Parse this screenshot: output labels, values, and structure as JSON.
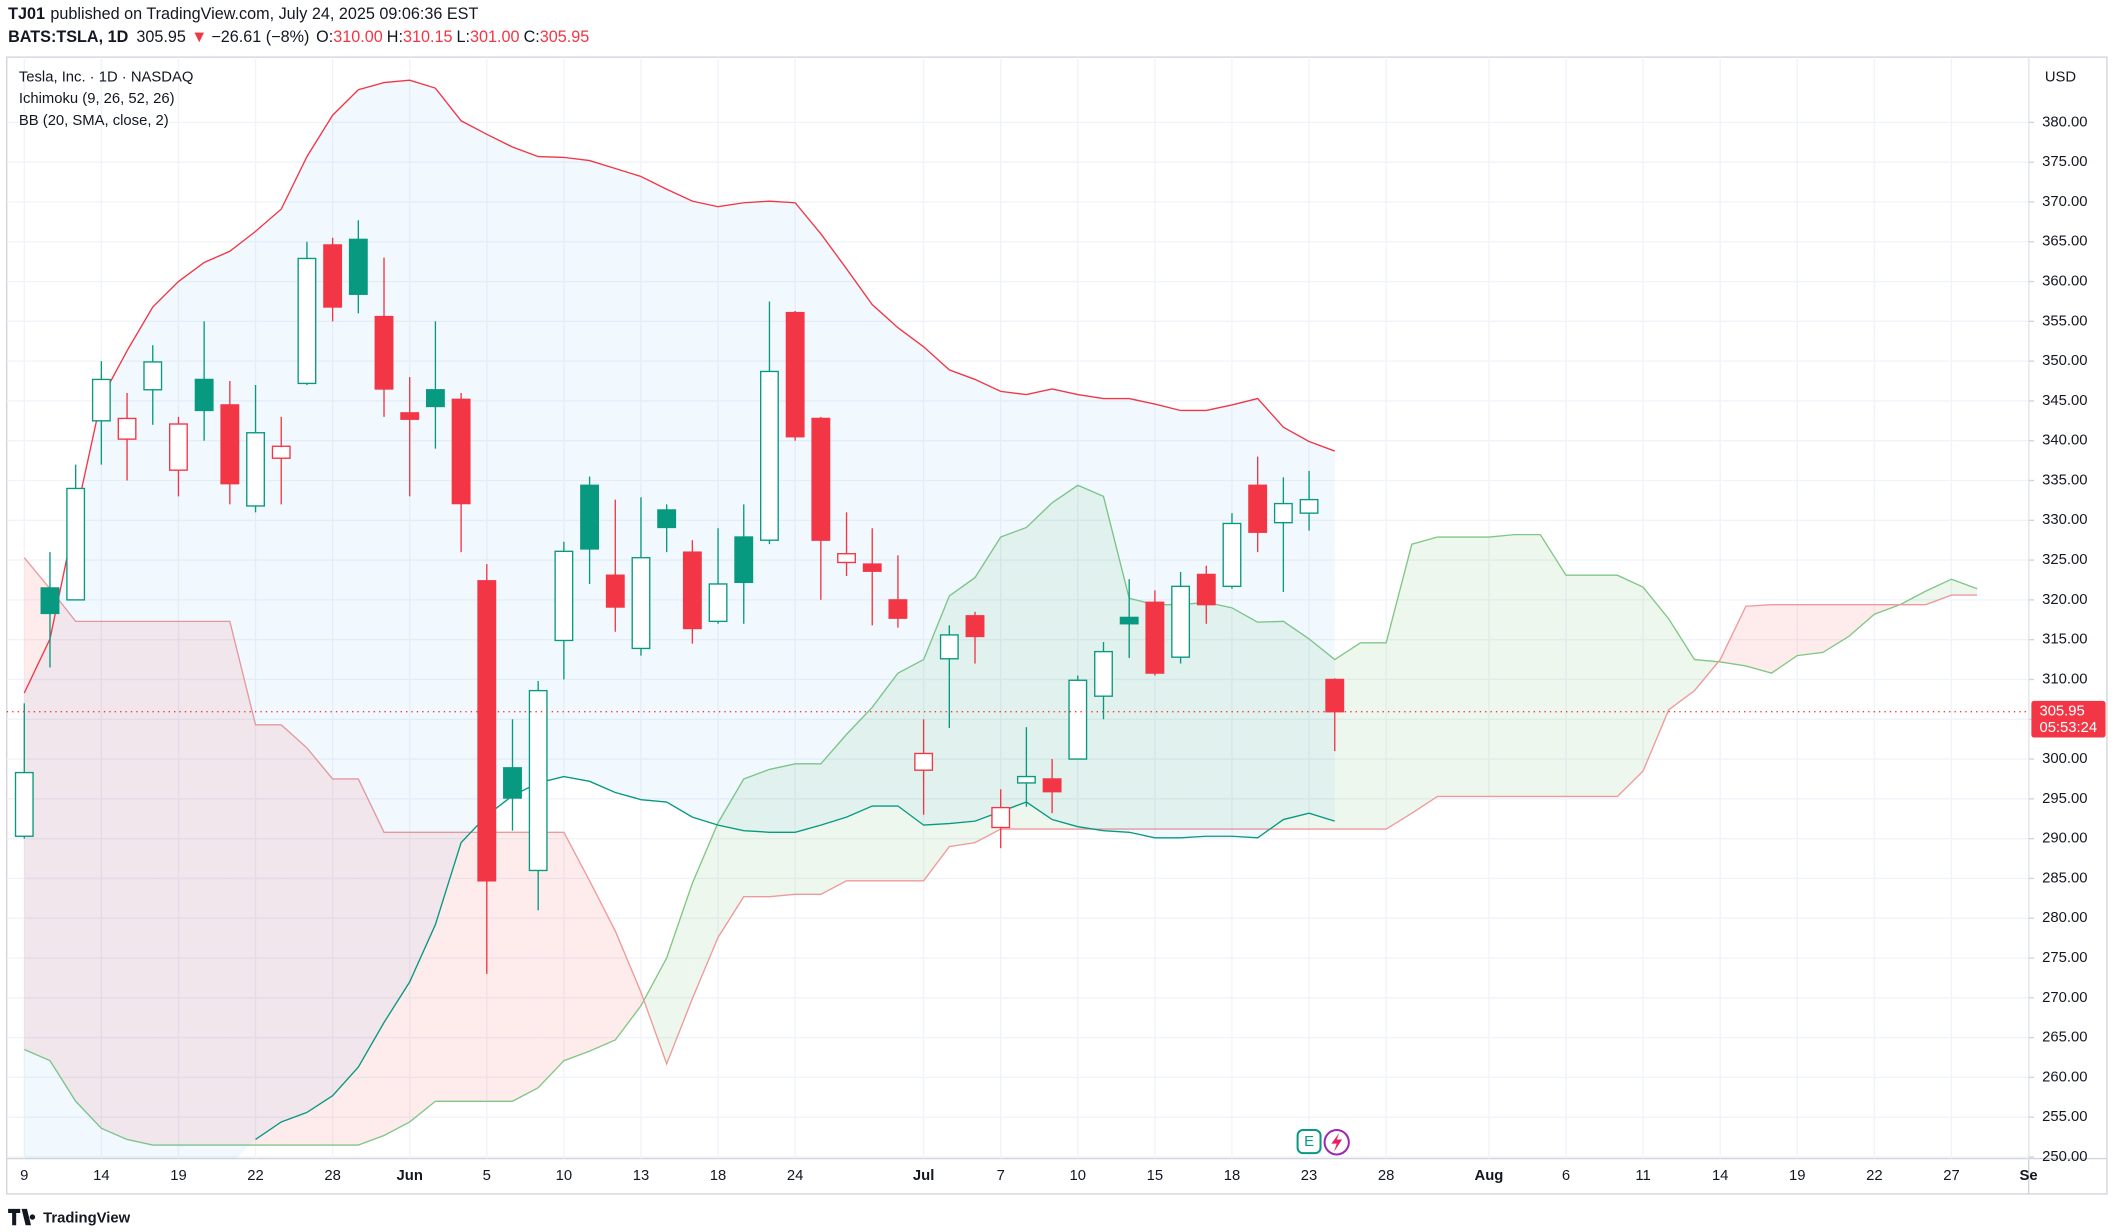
{
  "header": {
    "author": "TJ01",
    "published": "published on TradingView.com, July 24, 2025 09:06:36 EST",
    "symbol": "BATS:TSLA, 1D",
    "last": "305.95",
    "arrow": "▼",
    "change": "−26.61 (−8%)",
    "o_key": "O:",
    "o": "310.00",
    "h_key": "H:",
    "h": "310.15",
    "l_key": "L:",
    "l": "301.00",
    "c_key": "C:",
    "c": "305.95"
  },
  "footer": {
    "brand": "TradingView"
  },
  "chart_data": {
    "type": "candlestick",
    "title": "Tesla, Inc. · 1D · NASDAQ",
    "currency": "USD",
    "up_color": "#089981",
    "down_color": "#f23645",
    "grid": true,
    "price_label": "305.95",
    "countdown": "05:53:24",
    "earnings_icon": "E",
    "categories": [
      "9",
      null,
      null,
      "14",
      null,
      null,
      "19",
      null,
      null,
      "22",
      null,
      null,
      "28",
      null,
      null,
      "Jun",
      null,
      null,
      "5",
      null,
      null,
      "10",
      null,
      null,
      "13",
      null,
      null,
      "18",
      null,
      null,
      "24",
      null,
      null,
      null,
      null,
      "Jul",
      null,
      null,
      "7",
      null,
      null,
      "10",
      null,
      null,
      "15",
      null,
      null,
      "18",
      null,
      null,
      "23",
      null,
      null,
      "28",
      null,
      null,
      null,
      "Aug",
      null,
      null,
      "6",
      null,
      null,
      "11",
      null,
      null,
      "14",
      null,
      null,
      "19",
      null,
      null,
      "22",
      null,
      null,
      "27",
      null,
      null,
      "Se"
    ],
    "open": [
      290.3,
      321.5,
      320,
      342.5,
      340.2,
      346.4,
      336.3,
      347.7,
      344.5,
      331.8,
      337.8,
      347.2,
      364.6,
      365.3,
      355.6,
      343.5,
      346.4,
      345.2,
      322.4,
      298.9,
      286,
      314.9,
      334.4,
      323.1,
      313.9,
      331.3,
      326,
      317.3,
      327.9,
      327.5,
      356.1,
      342.8,
      324.7,
      324.5,
      320,
      298.6,
      312.6,
      318,
      291.4,
      297,
      297.5,
      300,
      307.9,
      317.8,
      319.7,
      312.8,
      323.2,
      321.7,
      334.4,
      329.7,
      330.9,
      310,
      null,
      null,
      null,
      null,
      null,
      null,
      null,
      null,
      null,
      null,
      null,
      null,
      null,
      null,
      null,
      null,
      null,
      null,
      null,
      null,
      null,
      null,
      null,
      null,
      null,
      null,
      null
    ],
    "high": [
      307,
      326,
      337,
      350,
      346,
      352,
      343,
      355,
      347.5,
      347,
      343,
      365,
      365.5,
      367.7,
      363,
      348,
      355,
      346,
      324.5,
      305,
      309.8,
      327.3,
      335.5,
      332.6,
      332.9,
      332,
      327.5,
      329,
      332,
      357.5,
      356.3,
      343,
      331,
      329,
      325.6,
      305,
      316.8,
      318.5,
      296.2,
      304,
      300,
      310.5,
      314.7,
      322.6,
      321.2,
      323.5,
      324.3,
      330.9,
      338,
      335.4,
      336.2,
      310.15,
      null,
      null,
      null,
      null,
      null,
      null,
      null,
      null,
      null,
      null,
      null,
      null,
      null,
      null,
      null,
      null,
      null,
      null,
      null,
      null,
      null,
      null,
      null,
      null,
      null,
      null,
      null
    ],
    "low": [
      290,
      311.5,
      320,
      337,
      335,
      342,
      333,
      340,
      332,
      331,
      332,
      347,
      355,
      356,
      343,
      333,
      339,
      326,
      273,
      291,
      281,
      310,
      322,
      316,
      313,
      326,
      314.5,
      317,
      317,
      327,
      340,
      320,
      323,
      316.8,
      316.5,
      293,
      303.9,
      312,
      288.8,
      294,
      293.2,
      300,
      305,
      312.7,
      310.5,
      312,
      317,
      321.4,
      326,
      321,
      328.7,
      301,
      null,
      null,
      null,
      null,
      null,
      null,
      null,
      null,
      null,
      null,
      null,
      null,
      null,
      null,
      null,
      null,
      null,
      null,
      null,
      null,
      null,
      null,
      null,
      null,
      null,
      null,
      null
    ],
    "close": [
      298.3,
      318.3,
      334,
      347.7,
      342.8,
      349.9,
      342.1,
      343.8,
      334.6,
      341,
      339.3,
      362.9,
      356.8,
      358.4,
      346.5,
      342.7,
      344.3,
      332.1,
      284.7,
      295.1,
      308.6,
      326.1,
      326.4,
      319.1,
      325.3,
      329.1,
      316.4,
      322,
      322.2,
      348.7,
      340.5,
      327.5,
      325.8,
      323.6,
      317.7,
      300.7,
      315.6,
      315.4,
      293.9,
      297.8,
      295.9,
      309.9,
      313.5,
      317,
      310.8,
      321.7,
      319.4,
      329.6,
      328.5,
      332.1,
      332.6,
      305.95,
      null,
      null,
      null,
      null,
      null,
      null,
      null,
      null,
      null,
      null,
      null,
      null,
      null,
      null,
      null,
      null,
      null,
      null,
      null,
      null,
      null,
      null,
      null,
      null,
      null,
      null,
      null
    ],
    "overlays": [
      {
        "name": "Ichimoku (9, 26, 52, 26)",
        "kind": "cloud",
        "color_a": "#81c784",
        "color_b": "#ef9a9a",
        "fill_a": "rgba(76,175,80,0.10)",
        "fill_b": "rgba(242,54,69,0.10)",
        "span_a": [
          263.5,
          262.1,
          257.0,
          253.6,
          252.2,
          251.5,
          251.5,
          251.5,
          251.5,
          251.5,
          251.5,
          251.5,
          251.5,
          251.5,
          252.7,
          254.4,
          257.0,
          257.0,
          257.0,
          257.0,
          258.7,
          262.1,
          263.3,
          264.7,
          269.0,
          275.0,
          284.4,
          292.0,
          297.5,
          298.7,
          299.4,
          299.4,
          303.1,
          306.5,
          310.8,
          312.5,
          320.5,
          322.8,
          327.9,
          329.1,
          332.2,
          334.4,
          333.0,
          320.2,
          319.4,
          319.4,
          319.7,
          319.0,
          317.2,
          317.3,
          315.1,
          312.5,
          314.6,
          314.6,
          327.0,
          327.9,
          327.9,
          327.9,
          328.2,
          328.2,
          323.1,
          323.1,
          323.1,
          321.6,
          317.6,
          312.5,
          312.2,
          311.7,
          310.8,
          313.0,
          313.4,
          315.4,
          318.2,
          319.4,
          321.1,
          322.6,
          321.4,
          null,
          null
        ],
        "span_b": [
          325.3,
          321.4,
          317.3,
          317.3,
          317.3,
          317.3,
          317.3,
          317.3,
          317.3,
          304.3,
          304.3,
          301.4,
          297.5,
          297.5,
          290.8,
          290.8,
          290.8,
          290.8,
          290.8,
          290.8,
          290.8,
          290.8,
          284.7,
          278.4,
          270.7,
          261.7,
          269.9,
          277.6,
          282.7,
          282.7,
          283.0,
          283.0,
          284.7,
          284.7,
          284.7,
          284.7,
          289.0,
          289.5,
          291.2,
          291.2,
          291.2,
          291.2,
          291.2,
          291.2,
          291.2,
          291.2,
          291.2,
          291.2,
          291.2,
          291.2,
          291.2,
          291.2,
          291.2,
          291.2,
          293.2,
          295.3,
          295.3,
          295.3,
          295.3,
          295.3,
          295.3,
          295.3,
          295.3,
          298.5,
          306.2,
          308.6,
          312.5,
          319.2,
          319.4,
          319.4,
          319.4,
          319.4,
          319.4,
          319.4,
          319.4,
          320.6,
          320.6,
          null,
          null
        ]
      },
      {
        "name": "BB (20, SMA, close, 2)",
        "kind": "bands",
        "color_upper": "#f23645",
        "color_lower": "#089981",
        "fill": "rgba(33,150,243,0.06)",
        "upper": [
          308.3,
          315.1,
          330.5,
          345.3,
          351.3,
          356.8,
          360.0,
          362.4,
          363.8,
          366.3,
          369.1,
          375.7,
          380.9,
          384.1,
          385.0,
          385.3,
          384.3,
          380.2,
          378.5,
          376.9,
          375.7,
          375.6,
          375.2,
          374.2,
          373.2,
          371.6,
          370.1,
          369.4,
          369.9,
          370.1,
          369.9,
          366.0,
          361.6,
          357.1,
          354.2,
          351.8,
          348.9,
          347.7,
          346.2,
          345.8,
          346.5,
          345.8,
          345.3,
          345.3,
          344.6,
          343.8,
          343.8,
          344.5,
          345.3,
          341.7,
          339.9,
          338.7,
          null,
          null,
          null,
          null,
          null,
          null,
          null,
          null,
          null,
          null,
          null,
          null,
          null,
          null,
          null,
          null,
          null,
          null,
          null,
          null,
          null,
          null,
          null,
          null,
          null,
          null,
          null
        ],
        "lower": [
          null,
          null,
          null,
          null,
          null,
          null,
          null,
          null,
          null,
          252.2,
          254.4,
          255.6,
          257.7,
          261.3,
          266.9,
          272.0,
          279.2,
          289.5,
          292.9,
          295.4,
          297.0,
          297.8,
          297.2,
          295.8,
          294.9,
          294.6,
          292.7,
          291.7,
          291.0,
          290.8,
          290.8,
          291.7,
          292.7,
          294.1,
          294.1,
          291.7,
          291.9,
          292.2,
          293.4,
          294.6,
          292.4,
          291.5,
          291.0,
          290.8,
          290.1,
          290.1,
          290.3,
          290.3,
          290.1,
          292.4,
          293.2,
          292.2,
          null,
          null,
          null,
          null,
          null,
          null,
          null,
          null,
          null,
          null,
          null,
          null,
          null,
          null,
          null,
          null,
          null,
          null,
          null,
          null,
          null,
          null,
          null,
          null,
          null,
          null,
          null
        ]
      }
    ],
    "ylim": [
      249.8,
      388.2
    ],
    "yticks": [
      {
        "value": 250,
        "label": "250.00"
      },
      {
        "value": 255,
        "label": "255.00"
      },
      {
        "value": 260,
        "label": "260.00"
      },
      {
        "value": 265,
        "label": "265.00"
      },
      {
        "value": 270,
        "label": "270.00"
      },
      {
        "value": 275,
        "label": "275.00"
      },
      {
        "value": 280,
        "label": "280.00"
      },
      {
        "value": 285,
        "label": "285.00"
      },
      {
        "value": 290,
        "label": "290.00"
      },
      {
        "value": 295,
        "label": "295.00"
      },
      {
        "value": 300,
        "label": "300.00"
      },
      {
        "value": 305,
        "label": "305.00"
      },
      {
        "value": 310,
        "label": "310.00"
      },
      {
        "value": 315,
        "label": "315.00"
      },
      {
        "value": 320,
        "label": "320.00"
      },
      {
        "value": 325,
        "label": "325.00"
      },
      {
        "value": 330,
        "label": "330.00"
      },
      {
        "value": 335,
        "label": "335.00"
      },
      {
        "value": 340,
        "label": "340.00"
      },
      {
        "value": 345,
        "label": "345.00"
      },
      {
        "value": 350,
        "label": "350.00"
      },
      {
        "value": 355,
        "label": "355.00"
      },
      {
        "value": 360,
        "label": "360.00"
      },
      {
        "value": 365,
        "label": "365.00"
      },
      {
        "value": 370,
        "label": "370.00"
      },
      {
        "value": 375,
        "label": "375.00"
      },
      {
        "value": 380,
        "label": "380.00"
      }
    ]
  }
}
